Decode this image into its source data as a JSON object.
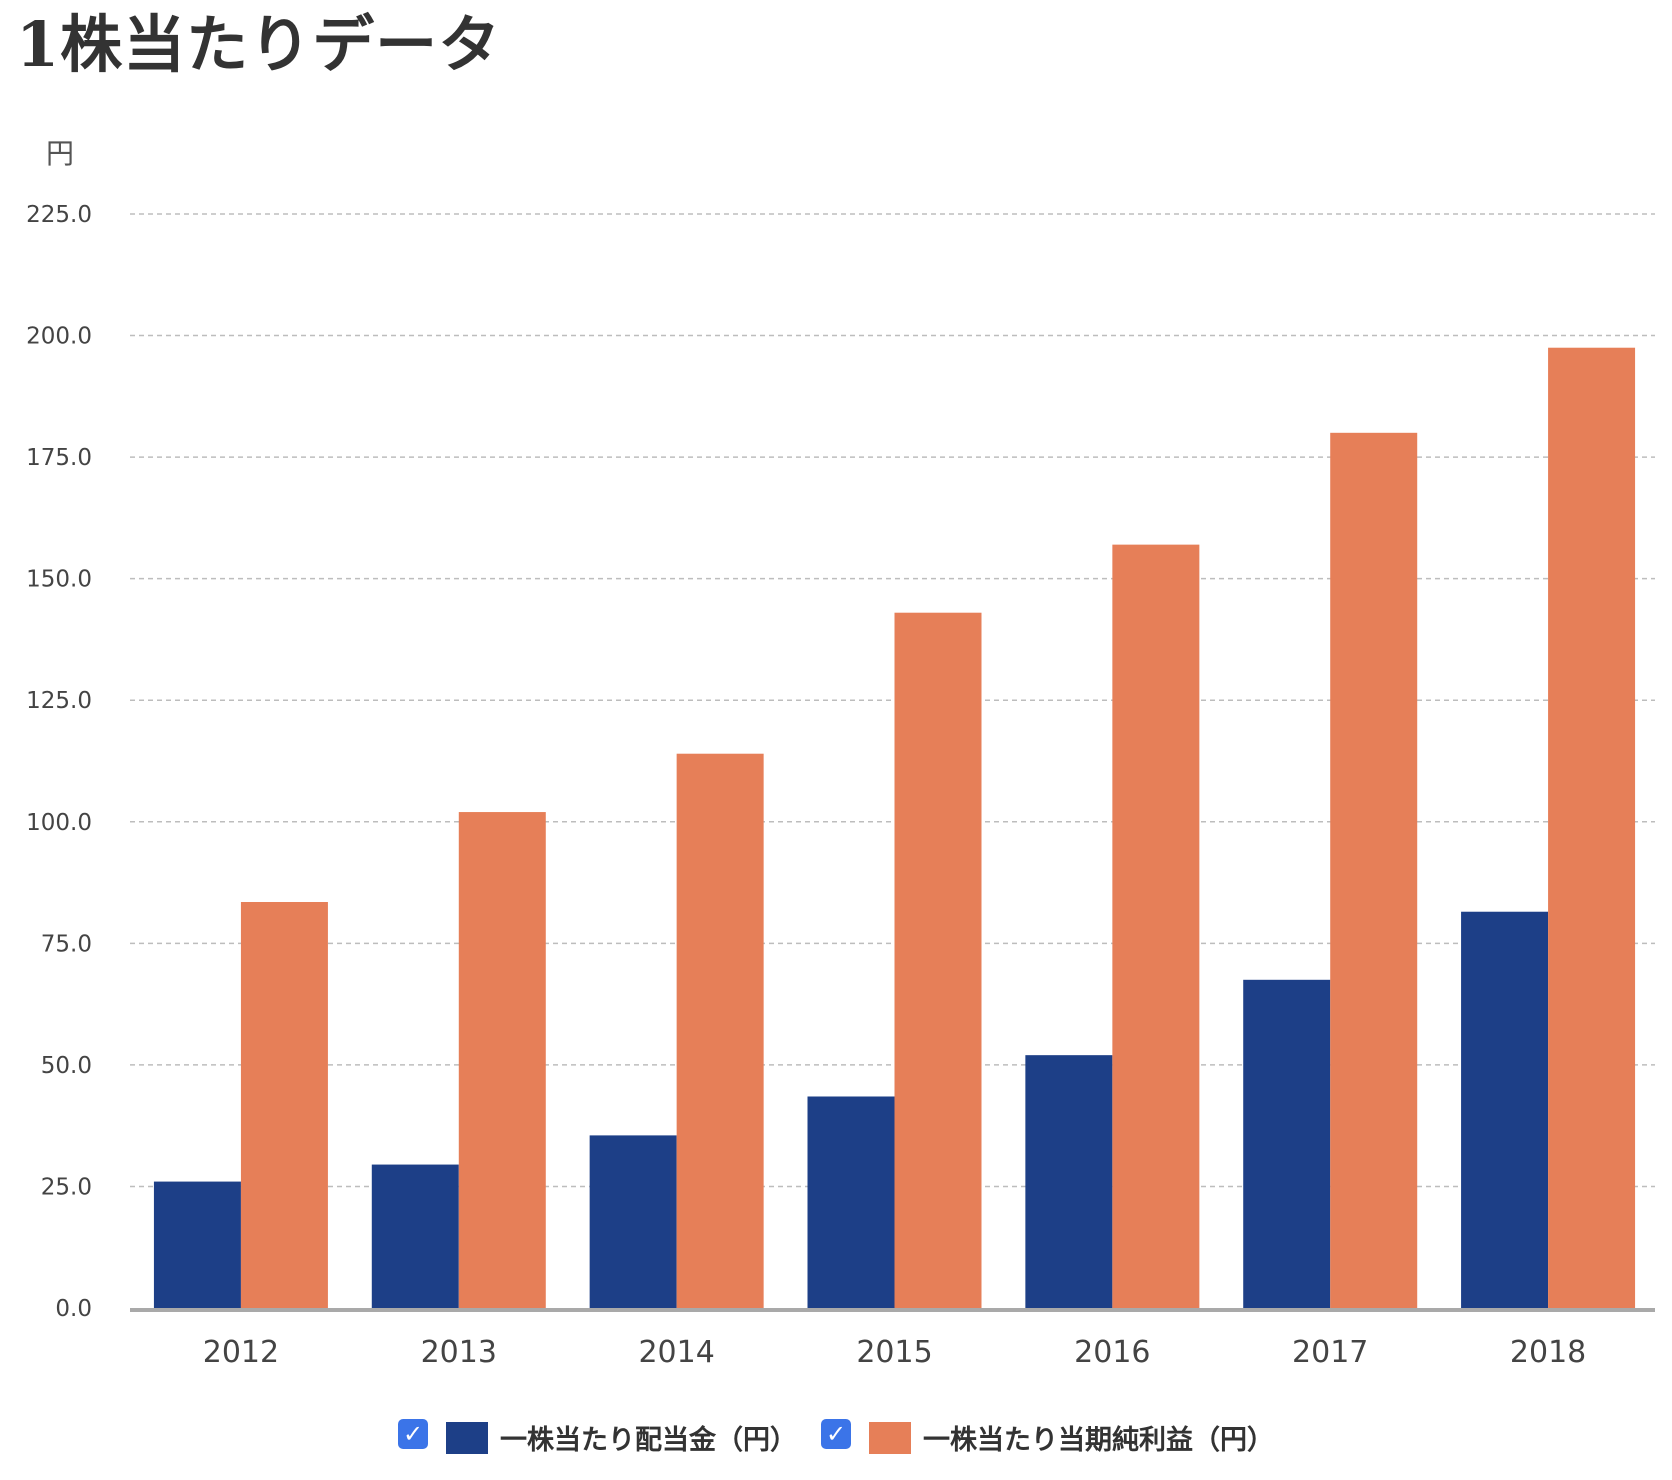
{
  "title": "1株当たりデータ",
  "chart_data": {
    "type": "bar",
    "title": "",
    "ylabel": "円",
    "xlabel": "",
    "categories": [
      "2012",
      "2013",
      "2014",
      "2015",
      "2016",
      "2017",
      "2018"
    ],
    "series": [
      {
        "name": "一株当たり配当金（円）",
        "color": "#1d3f87",
        "values": [
          26,
          29.5,
          35.5,
          43.5,
          52,
          67.5,
          81.5
        ]
      },
      {
        "name": "一株当たり当期純利益（円）",
        "color": "#e67f58",
        "values": [
          83.5,
          102,
          114,
          143,
          157,
          180,
          197.5
        ]
      }
    ],
    "ylim": [
      0,
      225
    ],
    "yticks": [
      "0.0",
      "25.0",
      "50.0",
      "75.0",
      "100.0",
      "125.0",
      "150.0",
      "175.0",
      "200.0",
      "225.0"
    ],
    "grid": true,
    "legend": "bottom-center",
    "legend_checked": [
      true,
      true
    ]
  }
}
